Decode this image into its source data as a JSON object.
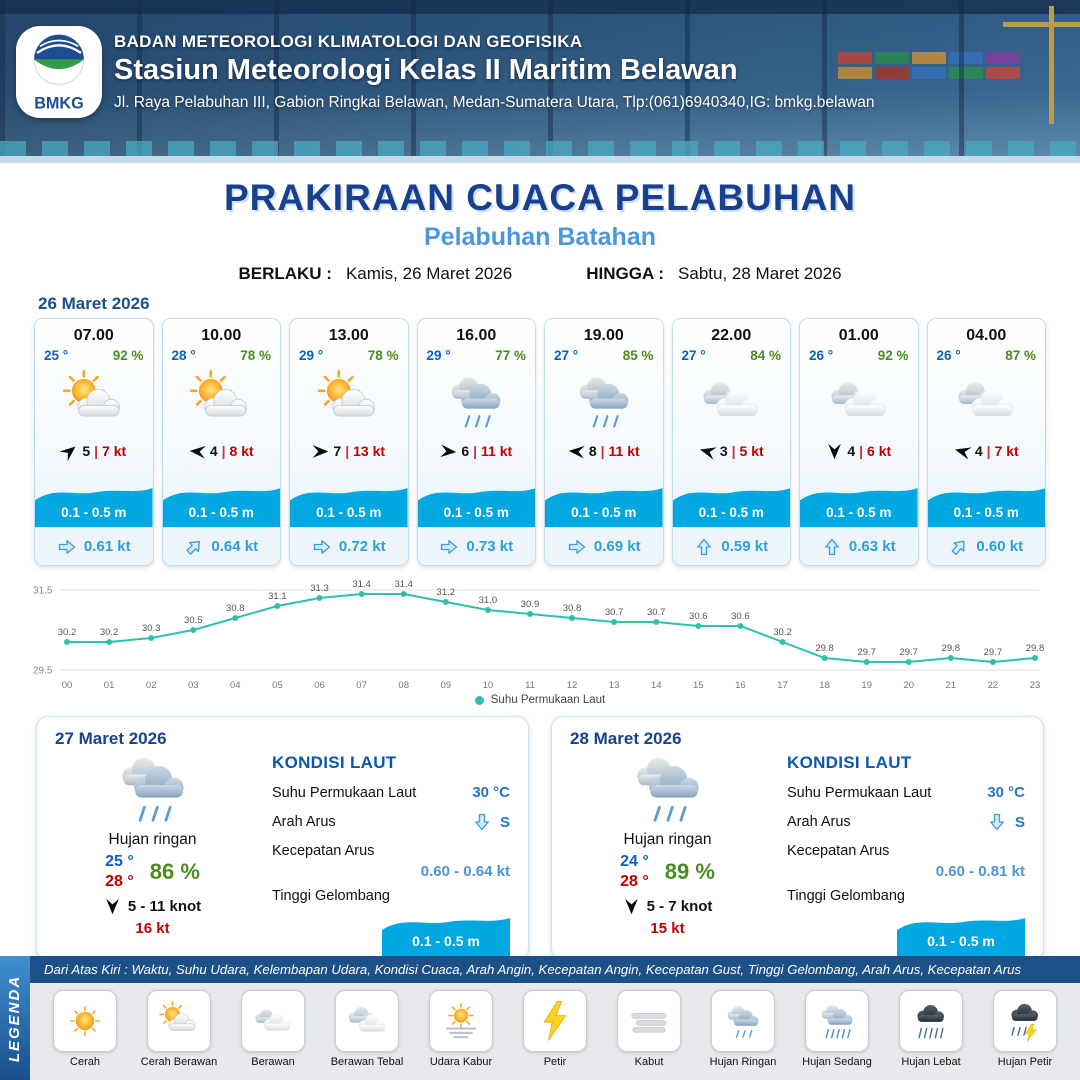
{
  "header": {
    "org": "BADAN METEOROLOGI KLIMATOLOGI DAN GEOFISIKA",
    "station": "Stasiun Meteorologi Kelas II Maritim Belawan",
    "address": "Jl. Raya Pelabuhan III, Gabion Ringkai Belawan, Medan-Sumatera Utara, Tlp:(061)6940340,IG: bmkg.belawan",
    "logo_text": "BMKG"
  },
  "title": {
    "main": "PRAKIRAAN CUACA PELABUHAN",
    "sub": "Pelabuhan Batahan",
    "berlaku_label": "BERLAKU :",
    "berlaku_value": "Kamis, 26 Maret 2026",
    "hingga_label": "HINGGA :",
    "hingga_value": "Sabtu, 28 Maret 2026"
  },
  "hourly": {
    "date": "26 Maret 2026",
    "cards": [
      {
        "time": "07.00",
        "temp": "25 °",
        "humidity": "92 %",
        "icon": "cerah-berawan",
        "wind_deg": -40,
        "wind_speed": "5",
        "gust": "7 kt",
        "wave": "0.1 - 0.5 m",
        "current_deg": 0,
        "current_speed": "0.61 kt"
      },
      {
        "time": "10.00",
        "temp": "28 °",
        "humidity": "78 %",
        "icon": "cerah-berawan",
        "wind_deg": 185,
        "wind_speed": "4",
        "gust": "8 kt",
        "wave": "0.1 - 0.5 m",
        "current_deg": -45,
        "current_speed": "0.64 kt"
      },
      {
        "time": "13.00",
        "temp": "29 °",
        "humidity": "78 %",
        "icon": "cerah-berawan",
        "wind_deg": 0,
        "wind_speed": "7",
        "gust": "13 kt",
        "wave": "0.1 - 0.5 m",
        "current_deg": 0,
        "current_speed": "0.72 kt"
      },
      {
        "time": "16.00",
        "temp": "29 °",
        "humidity": "77 %",
        "icon": "hujan-ringan",
        "wind_deg": 5,
        "wind_speed": "6",
        "gust": "11 kt",
        "wave": "0.1 - 0.5 m",
        "current_deg": 0,
        "current_speed": "0.73 kt"
      },
      {
        "time": "19.00",
        "temp": "27 °",
        "humidity": "85 %",
        "icon": "hujan-ringan",
        "wind_deg": 185,
        "wind_speed": "8",
        "gust": "11 kt",
        "wave": "0.1 - 0.5 m",
        "current_deg": 0,
        "current_speed": "0.69 kt"
      },
      {
        "time": "22.00",
        "temp": "27 °",
        "humidity": "84 %",
        "icon": "berawan",
        "wind_deg": 195,
        "wind_speed": "3",
        "gust": "5 kt",
        "wave": "0.1 - 0.5 m",
        "current_deg": -90,
        "current_speed": "0.59 kt"
      },
      {
        "time": "01.00",
        "temp": "26 °",
        "humidity": "92 %",
        "icon": "berawan",
        "wind_deg": 90,
        "wind_speed": "4",
        "gust": "6 kt",
        "wave": "0.1 - 0.5 m",
        "current_deg": -90,
        "current_speed": "0.63 kt"
      },
      {
        "time": "04.00",
        "temp": "26 °",
        "humidity": "87 %",
        "icon": "berawan",
        "wind_deg": 195,
        "wind_speed": "4",
        "gust": "7 kt",
        "wave": "0.1 - 0.5 m",
        "current_deg": -50,
        "current_speed": "0.60 kt"
      }
    ]
  },
  "chart_data": {
    "type": "line",
    "title": "",
    "x": [
      "00",
      "01",
      "02",
      "03",
      "04",
      "05",
      "06",
      "07",
      "08",
      "09",
      "10",
      "11",
      "12",
      "13",
      "14",
      "15",
      "16",
      "17",
      "18",
      "19",
      "20",
      "21",
      "22",
      "23"
    ],
    "series": [
      {
        "name": "Suhu Permukaan Laut",
        "values": [
          30.2,
          30.2,
          30.3,
          30.5,
          30.8,
          31.1,
          31.3,
          31.4,
          31.4,
          31.2,
          31.0,
          30.9,
          30.8,
          30.7,
          30.7,
          30.6,
          30.6,
          30.2,
          29.8,
          29.7,
          29.7,
          29.8,
          29.7,
          29.8
        ]
      }
    ],
    "ylim": [
      29.5,
      31.5
    ],
    "yticks": [
      29.5,
      31.5
    ],
    "legend_label": "Suhu Permukaan Laut",
    "line_color": "#2fc0ad",
    "grid": true,
    "legend_position": "bottom"
  },
  "daily": [
    {
      "date": "27 Maret 2026",
      "condition": "Hujan ringan",
      "icon": "hujan-ringan",
      "temp_min": "25 °",
      "temp_max": "28 °",
      "humidity": "86 %",
      "wind_range": "5 - 11 knot",
      "wind_deg": 90,
      "gust": "16 kt",
      "sea": {
        "title": "KONDISI LAUT",
        "sst_label": "Suhu Permukaan Laut",
        "sst_value": "30 °C",
        "current_dir_label": "Arah Arus",
        "current_dir": "S",
        "current_dir_deg": 90,
        "current_speed_label": "Kecepatan Arus",
        "current_speed": "0.60 - 0.64 kt",
        "wave_label": "Tinggi Gelombang",
        "wave_value": "0.1 - 0.5 m"
      }
    },
    {
      "date": "28 Maret 2026",
      "condition": "Hujan ringan",
      "icon": "hujan-ringan",
      "temp_min": "24 °",
      "temp_max": "28 °",
      "humidity": "89 %",
      "wind_range": "5 - 7 knot",
      "wind_deg": 90,
      "gust": "15 kt",
      "sea": {
        "title": "KONDISI LAUT",
        "sst_label": "Suhu Permukaan Laut",
        "sst_value": "30 °C",
        "current_dir_label": "Arah Arus",
        "current_dir": "S",
        "current_dir_deg": 90,
        "current_speed_label": "Kecepatan Arus",
        "current_speed": "0.60 - 0.81 kt",
        "wave_label": "Tinggi Gelombang",
        "wave_value": "0.1 - 0.5 m"
      }
    }
  ],
  "legend": {
    "side_label": "LEGENDA",
    "caption": "Dari Atas Kiri : Waktu, Suhu Udara, Kelembapan Udara, Kondisi Cuaca, Arah Angin, Kecepatan Angin, Kecepatan Gust, Tinggi Gelombang, Arah Arus, Kecepatan Arus",
    "items": [
      {
        "label": "Cerah",
        "icon": "cerah"
      },
      {
        "label": "Cerah Berawan",
        "icon": "cerah-berawan"
      },
      {
        "label": "Berawan",
        "icon": "berawan"
      },
      {
        "label": "Berawan Tebal",
        "icon": "berawan-tebal"
      },
      {
        "label": "Udara Kabur",
        "icon": "udara-kabur"
      },
      {
        "label": "Petir",
        "icon": "petir"
      },
      {
        "label": "Kabut",
        "icon": "kabut"
      },
      {
        "label": "Hujan Ringan",
        "icon": "hujan-ringan"
      },
      {
        "label": "Hujan Sedang",
        "icon": "hujan-sedang"
      },
      {
        "label": "Hujan Lebat",
        "icon": "hujan-lebat"
      },
      {
        "label": "Hujan Petir",
        "icon": "hujan-petir"
      }
    ]
  },
  "colors": {
    "navy": "#17418e",
    "sky_blue": "#4a97dd",
    "temp_blue": "#0a5fc4",
    "humidity_green": "#4a8c1f",
    "gust_red": "#c00000",
    "wave_blue": "#00a7e1",
    "current_blue": "#2e9fd8",
    "chart_teal": "#2fc0ad"
  }
}
